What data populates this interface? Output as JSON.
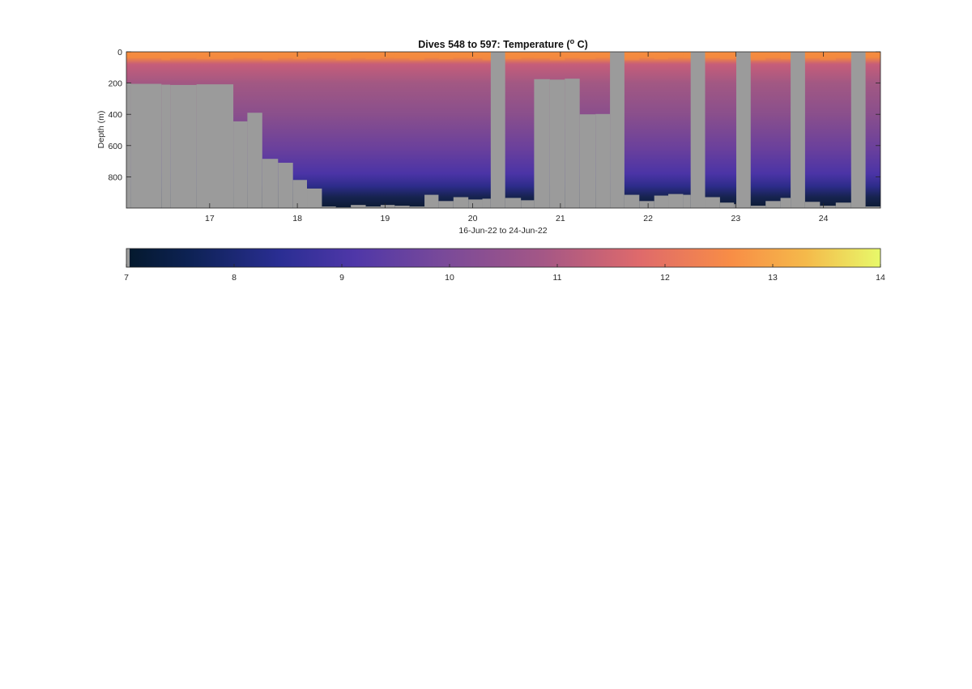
{
  "chart_data": {
    "type": "heatmap",
    "title": "Dives 548 to 597: Temperature (",
    "title_sup": "o",
    "title_tail": " C)",
    "xlabel": "16-Jun-22 to 24-Jun-22",
    "ylabel": "Depth (m)",
    "x_range_days": [
      16.05,
      24.65
    ],
    "y_range_m": [
      0,
      1000
    ],
    "y_reversed": true,
    "x_ticks": [
      "17",
      "18",
      "19",
      "20",
      "21",
      "22",
      "23",
      "24"
    ],
    "x_tick_values": [
      17,
      18,
      19,
      20,
      21,
      22,
      23,
      24
    ],
    "y_ticks": [
      "0",
      "200",
      "400",
      "600",
      "800"
    ],
    "y_tick_values": [
      0,
      200,
      400,
      600,
      800
    ],
    "grid": false,
    "no_data_color": "#9b9b9b",
    "colormap": "thermal",
    "colorbar": {
      "ticks": [
        "7",
        "8",
        "9",
        "10",
        "11",
        "12",
        "13",
        "14"
      ],
      "min": 7,
      "max": 14
    },
    "profiles_bottom_depth_m": [
      {
        "start": 16.05,
        "end": 16.1,
        "bottom": 200
      },
      {
        "start": 16.1,
        "end": 16.45,
        "bottom": 205
      },
      {
        "start": 16.45,
        "end": 16.55,
        "bottom": 210
      },
      {
        "start": 16.55,
        "end": 16.85,
        "bottom": 212
      },
      {
        "start": 16.85,
        "end": 17.27,
        "bottom": 208
      },
      {
        "start": 17.27,
        "end": 17.43,
        "bottom": 445
      },
      {
        "start": 17.43,
        "end": 17.6,
        "bottom": 390
      },
      {
        "start": 17.6,
        "end": 17.78,
        "bottom": 685
      },
      {
        "start": 17.78,
        "end": 17.95,
        "bottom": 710
      },
      {
        "start": 17.95,
        "end": 18.11,
        "bottom": 820
      },
      {
        "start": 18.11,
        "end": 18.28,
        "bottom": 875
      },
      {
        "start": 18.28,
        "end": 18.44,
        "bottom": 990
      },
      {
        "start": 18.44,
        "end": 18.61,
        "bottom": 995
      },
      {
        "start": 18.61,
        "end": 18.78,
        "bottom": 980
      },
      {
        "start": 18.78,
        "end": 18.95,
        "bottom": 990
      },
      {
        "start": 18.95,
        "end": 19.11,
        "bottom": 980
      },
      {
        "start": 19.11,
        "end": 19.28,
        "bottom": 985
      },
      {
        "start": 19.28,
        "end": 19.45,
        "bottom": 990
      },
      {
        "start": 19.45,
        "end": 19.61,
        "bottom": 915
      },
      {
        "start": 19.61,
        "end": 19.78,
        "bottom": 955
      },
      {
        "start": 19.78,
        "end": 19.95,
        "bottom": 930
      },
      {
        "start": 19.95,
        "end": 20.11,
        "bottom": 945
      },
      {
        "start": 20.11,
        "end": 20.2,
        "bottom": 940
      },
      {
        "start": 20.2,
        "end": 20.37,
        "gap": true
      },
      {
        "start": 20.37,
        "end": 20.55,
        "bottom": 935
      },
      {
        "start": 20.55,
        "end": 20.7,
        "bottom": 950
      },
      {
        "start": 20.7,
        "end": 20.88,
        "bottom": 175
      },
      {
        "start": 20.88,
        "end": 21.05,
        "bottom": 178
      },
      {
        "start": 21.05,
        "end": 21.22,
        "bottom": 172
      },
      {
        "start": 21.22,
        "end": 21.4,
        "bottom": 400
      },
      {
        "start": 21.4,
        "end": 21.56,
        "bottom": 398
      },
      {
        "start": 21.56,
        "end": 21.73,
        "gap": true
      },
      {
        "start": 21.73,
        "end": 21.9,
        "bottom": 915
      },
      {
        "start": 21.9,
        "end": 22.07,
        "bottom": 955
      },
      {
        "start": 22.07,
        "end": 22.23,
        "bottom": 920
      },
      {
        "start": 22.23,
        "end": 22.4,
        "bottom": 910
      },
      {
        "start": 22.4,
        "end": 22.48,
        "bottom": 915
      },
      {
        "start": 22.48,
        "end": 22.65,
        "gap": true
      },
      {
        "start": 22.65,
        "end": 22.82,
        "bottom": 930
      },
      {
        "start": 22.82,
        "end": 22.98,
        "bottom": 965
      },
      {
        "start": 22.98,
        "end": 23.0,
        "bottom": 975
      },
      {
        "start": 23.0,
        "end": 23.17,
        "gap": true
      },
      {
        "start": 23.17,
        "end": 23.34,
        "bottom": 985
      },
      {
        "start": 23.34,
        "end": 23.51,
        "bottom": 955
      },
      {
        "start": 23.51,
        "end": 23.62,
        "bottom": 935
      },
      {
        "start": 23.62,
        "end": 23.79,
        "gap": true
      },
      {
        "start": 23.79,
        "end": 23.96,
        "bottom": 960
      },
      {
        "start": 23.96,
        "end": 24.14,
        "bottom": 985
      },
      {
        "start": 24.14,
        "end": 24.31,
        "bottom": 965
      },
      {
        "start": 24.31,
        "end": 24.48,
        "gap": true
      },
      {
        "start": 24.48,
        "end": 24.65,
        "bottom": 990
      }
    ]
  }
}
